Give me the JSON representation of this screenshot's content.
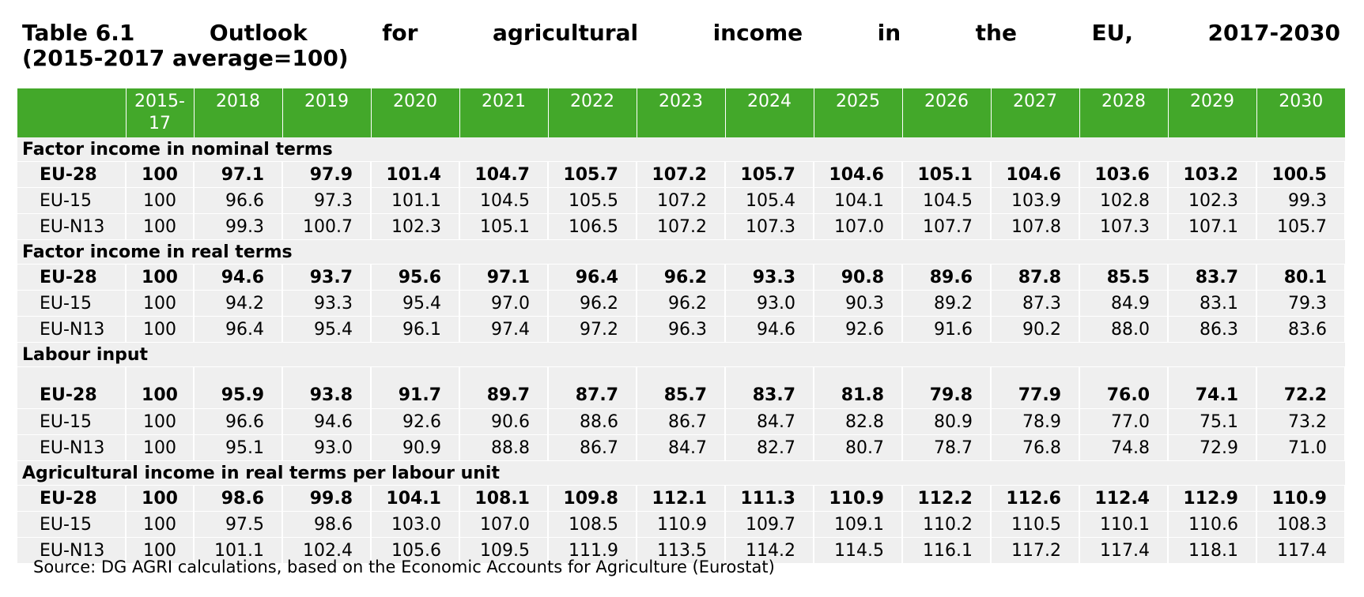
{
  "title": {
    "line1_words": [
      "Table 6.1",
      "Outlook",
      "for",
      "agricultural",
      "income",
      "in",
      "the",
      "EU,",
      "2017-2030"
    ],
    "line2": "(2015-2017 average=100)"
  },
  "table": {
    "columns": [
      "",
      "2015-\n17",
      "2018",
      "2019",
      "2020",
      "2021",
      "2022",
      "2023",
      "2024",
      "2025",
      "2026",
      "2027",
      "2028",
      "2029",
      "2030"
    ],
    "sections": [
      {
        "title": "Factor income in nominal terms",
        "rows": [
          {
            "label": "EU-28",
            "values": [
              "100",
              "97.1",
              "97.9",
              "101.4",
              "104.7",
              "105.7",
              "107.2",
              "105.7",
              "104.6",
              "105.1",
              "104.6",
              "103.6",
              "103.2",
              "100.5"
            ]
          },
          {
            "label": "EU-15",
            "values": [
              "100",
              "96.6",
              "97.3",
              "101.1",
              "104.5",
              "105.5",
              "107.2",
              "105.4",
              "104.1",
              "104.5",
              "103.9",
              "102.8",
              "102.3",
              "99.3"
            ]
          },
          {
            "label": "EU-N13",
            "values": [
              "100",
              "99.3",
              "100.7",
              "102.3",
              "105.1",
              "106.5",
              "107.2",
              "107.3",
              "107.0",
              "107.7",
              "107.8",
              "107.3",
              "107.1",
              "105.7"
            ]
          }
        ]
      },
      {
        "title": "Factor income in real terms",
        "rows": [
          {
            "label": "EU-28",
            "values": [
              "100",
              "94.6",
              "93.7",
              "95.6",
              "97.1",
              "96.4",
              "96.2",
              "93.3",
              "90.8",
              "89.6",
              "87.8",
              "85.5",
              "83.7",
              "80.1"
            ]
          },
          {
            "label": "EU-15",
            "values": [
              "100",
              "94.2",
              "93.3",
              "95.4",
              "97.0",
              "96.2",
              "96.2",
              "93.0",
              "90.3",
              "89.2",
              "87.3",
              "84.9",
              "83.1",
              "79.3"
            ]
          },
          {
            "label": "EU-N13",
            "values": [
              "100",
              "96.4",
              "95.4",
              "96.1",
              "97.4",
              "97.2",
              "96.3",
              "94.6",
              "92.6",
              "91.6",
              "90.2",
              "88.0",
              "86.3",
              "83.6"
            ]
          }
        ]
      },
      {
        "title": "Labour input",
        "rows": [
          {
            "label": "EU-28",
            "values": [
              "100",
              "95.9",
              "93.8",
              "91.7",
              "89.7",
              "87.7",
              "85.7",
              "83.7",
              "81.8",
              "79.8",
              "77.9",
              "76.0",
              "74.1",
              "72.2"
            ]
          },
          {
            "label": "EU-15",
            "values": [
              "100",
              "96.6",
              "94.6",
              "92.6",
              "90.6",
              "88.6",
              "86.7",
              "84.7",
              "82.8",
              "80.9",
              "78.9",
              "77.0",
              "75.1",
              "73.2"
            ]
          },
          {
            "label": "EU-N13",
            "values": [
              "100",
              "95.1",
              "93.0",
              "90.9",
              "88.8",
              "86.7",
              "84.7",
              "82.7",
              "80.7",
              "78.7",
              "76.8",
              "74.8",
              "72.9",
              "71.0"
            ]
          }
        ]
      },
      {
        "title": "Agricultural income in real terms per labour unit",
        "rows": [
          {
            "label": "EU-28",
            "values": [
              "100",
              "98.6",
              "99.8",
              "104.1",
              "108.1",
              "109.8",
              "112.1",
              "111.3",
              "110.9",
              "112.2",
              "112.6",
              "112.4",
              "112.9",
              "110.9"
            ]
          },
          {
            "label": "EU-15",
            "values": [
              "100",
              "97.5",
              "98.6",
              "103.0",
              "107.0",
              "108.5",
              "110.9",
              "109.7",
              "109.1",
              "110.2",
              "110.5",
              "110.1",
              "110.6",
              "108.3"
            ]
          },
          {
            "label": "EU-N13",
            "values": [
              "100",
              "101.1",
              "102.4",
              "105.6",
              "109.5",
              "111.9",
              "113.5",
              "114.2",
              "114.5",
              "116.1",
              "117.2",
              "117.4",
              "118.1",
              "117.4"
            ]
          }
        ]
      }
    ]
  },
  "source": "Source: DG AGRI calculations, based on the Economic Accounts for Agriculture (Eurostat)"
}
